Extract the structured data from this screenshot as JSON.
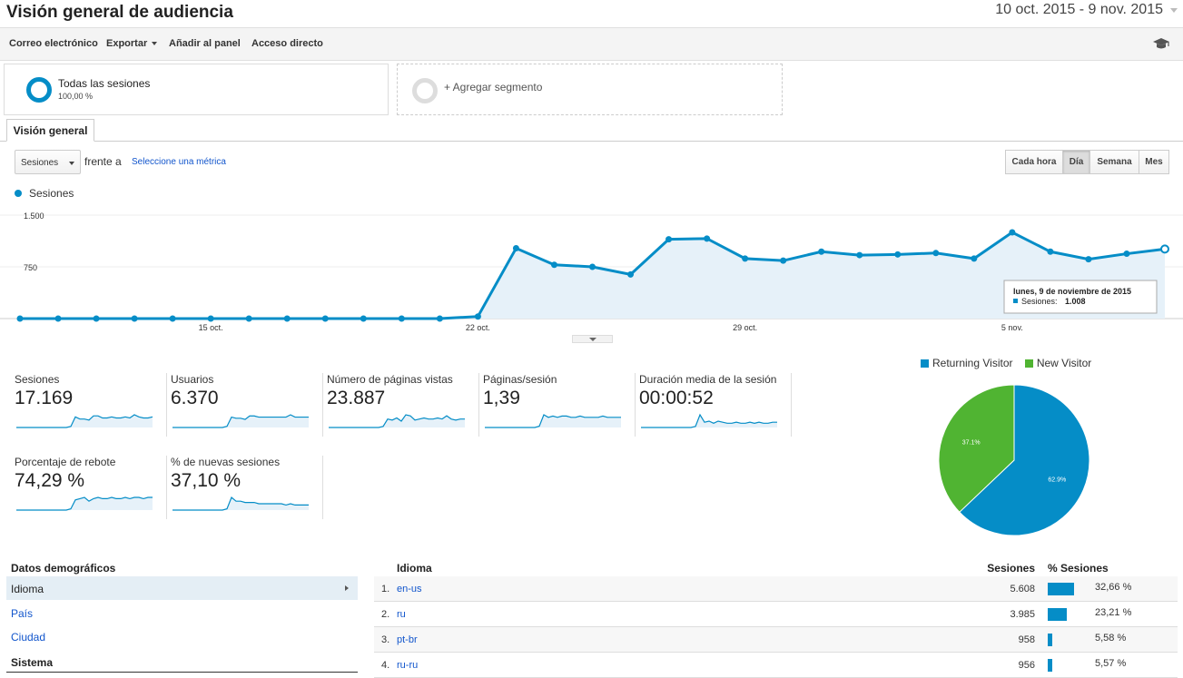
{
  "header": {
    "title": "Visión general de audiencia",
    "date_range": "10 oct. 2015 - 9 nov. 2015"
  },
  "toolbar": {
    "email": "Correo electrónico",
    "export": "Exportar",
    "add_dashboard": "Añadir al panel",
    "shortcut": "Acceso directo",
    "education_icon": "graduation-cap-icon"
  },
  "segments": {
    "all_sessions": "Todas las sesiones",
    "all_sessions_pct": "100,00 %",
    "add_segment": "+ Agregar segmento"
  },
  "tabs": {
    "overview": "Visión general"
  },
  "metric_picker": {
    "selected": "Sesiones",
    "versus": "frente a",
    "select_metric": "Seleccione una métrica"
  },
  "granularity": {
    "hour": "Cada hora",
    "day": "Día",
    "week": "Semana",
    "month": "Mes",
    "active": "day"
  },
  "accent_color": "#058dc7",
  "chart_data": {
    "type": "line",
    "series": [
      {
        "name": "Sesiones",
        "x": [
          "10 oct.",
          "11 oct.",
          "12 oct.",
          "13 oct.",
          "14 oct.",
          "15 oct.",
          "16 oct.",
          "17 oct.",
          "18 oct.",
          "19 oct.",
          "20 oct.",
          "21 oct.",
          "22 oct.",
          "23 oct.",
          "24 oct.",
          "25 oct.",
          "26 oct.",
          "27 oct.",
          "28 oct.",
          "29 oct.",
          "30 oct.",
          "31 oct.",
          "1 nov.",
          "2 nov.",
          "3 nov.",
          "4 nov.",
          "5 nov.",
          "6 nov.",
          "7 nov.",
          "8 nov.",
          "9 nov."
        ],
        "values": [
          0,
          0,
          0,
          0,
          0,
          0,
          0,
          0,
          0,
          0,
          0,
          0,
          30,
          1020,
          780,
          750,
          640,
          1150,
          1160,
          870,
          840,
          970,
          920,
          930,
          950,
          870,
          1250,
          970,
          860,
          940,
          1008
        ]
      }
    ],
    "x_tick_labels": [
      "15 oct.",
      "22 oct.",
      "29 oct.",
      "5 nov."
    ],
    "y_tick_labels": [
      "1.500",
      "750"
    ],
    "ylim": [
      0,
      1500
    ],
    "grid": true,
    "tooltip": {
      "title": "lunes, 9 de noviembre de 2015",
      "label": "Sesiones:",
      "value": "1.008"
    }
  },
  "scorecards": [
    {
      "label": "Sesiones",
      "value": "17.169",
      "spark": [
        0,
        0,
        0,
        0,
        0,
        0,
        0,
        0,
        0,
        0,
        0,
        0,
        1,
        10,
        8,
        8,
        7,
        11,
        11,
        9,
        9,
        10,
        9,
        9,
        10,
        9,
        12,
        10,
        9,
        9,
        10
      ]
    },
    {
      "label": "Usuarios",
      "value": "6.370",
      "spark": [
        0,
        0,
        0,
        0,
        0,
        0,
        0,
        0,
        0,
        0,
        0,
        0,
        1,
        9,
        8,
        8,
        7,
        10,
        10,
        9,
        9,
        9,
        9,
        9,
        9,
        9,
        11,
        9,
        9,
        9,
        9
      ]
    },
    {
      "label": "Número de páginas vistas",
      "value": "23.887",
      "spark": [
        0,
        0,
        0,
        0,
        0,
        0,
        0,
        0,
        0,
        0,
        0,
        0,
        1,
        8,
        7,
        9,
        6,
        12,
        11,
        7,
        8,
        9,
        8,
        8,
        9,
        8,
        11,
        8,
        7,
        8,
        8
      ]
    },
    {
      "label": "Páginas/sesión",
      "value": "1,39",
      "spark": [
        0,
        0,
        0,
        0,
        0,
        0,
        0,
        0,
        0,
        0,
        0,
        0,
        1,
        10,
        8,
        9,
        8,
        9,
        9,
        8,
        8,
        9,
        8,
        8,
        8,
        8,
        9,
        8,
        8,
        8,
        8
      ]
    },
    {
      "label": "Duración media de la sesión",
      "value": "00:00:52",
      "spark": [
        0,
        0,
        0,
        0,
        0,
        0,
        0,
        0,
        0,
        0,
        0,
        0,
        1,
        12,
        5,
        6,
        4,
        6,
        5,
        4,
        4,
        5,
        4,
        4,
        5,
        4,
        5,
        4,
        4,
        5,
        5
      ]
    },
    {
      "label": "Porcentaje de rebote",
      "value": "74,29 %",
      "spark": [
        0,
        0,
        0,
        0,
        0,
        0,
        0,
        0,
        0,
        0,
        0,
        0,
        1,
        8,
        9,
        10,
        7,
        9,
        10,
        9,
        9,
        10,
        9,
        9,
        10,
        9,
        10,
        10,
        9,
        10,
        10
      ]
    },
    {
      "label": "% de nuevas sesiones",
      "value": "37,10 %",
      "spark": [
        0,
        0,
        0,
        0,
        0,
        0,
        0,
        0,
        0,
        0,
        0,
        0,
        1,
        10,
        7,
        7,
        6,
        6,
        6,
        5,
        5,
        5,
        5,
        5,
        5,
        4,
        5,
        4,
        4,
        4,
        4
      ]
    }
  ],
  "pie": {
    "legend": [
      {
        "name": "Returning Visitor",
        "color": "#058dc7"
      },
      {
        "name": "New Visitor",
        "color": "#50b432"
      }
    ],
    "slices": [
      {
        "name": "Returning Visitor",
        "value": 62.9,
        "label": "62.9%"
      },
      {
        "name": "New Visitor",
        "value": 37.1,
        "label": "37.1%"
      }
    ]
  },
  "demographics": {
    "heading": "Datos demográficos",
    "items": [
      "Idioma",
      "País",
      "Ciudad"
    ],
    "system_heading": "Sistema"
  },
  "table": {
    "col_dimension": "Idioma",
    "col_sessions": "Sesiones",
    "col_pct": "% Sesiones",
    "rows": [
      {
        "n": "1.",
        "lang": "en-us",
        "sessions": "5.608",
        "pct": "32,66 %",
        "share": 32.66
      },
      {
        "n": "2.",
        "lang": "ru",
        "sessions": "3.985",
        "pct": "23,21 %",
        "share": 23.21
      },
      {
        "n": "3.",
        "lang": "pt-br",
        "sessions": "958",
        "pct": "5,58 %",
        "share": 5.58
      },
      {
        "n": "4.",
        "lang": "ru-ru",
        "sessions": "956",
        "pct": "5,57 %",
        "share": 5.57
      }
    ]
  }
}
